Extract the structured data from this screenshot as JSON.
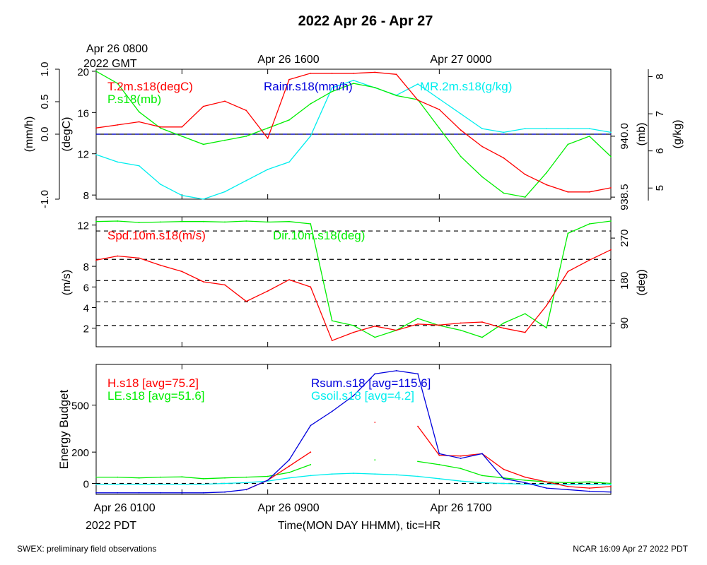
{
  "page": {
    "title": "2022 Apr 26 - Apr 27",
    "top_time_labels": [
      "Apr 26 0800",
      "Apr 26 1600",
      "Apr 27 0000"
    ],
    "top_zone_label": "2022 GMT",
    "bottom_time_labels": [
      "Apr 26 0100",
      "Apr 26 0900",
      "Apr 26 1700"
    ],
    "bottom_zone_label": "2022 PDT",
    "xaxis_label": "Time(MON DAY HHMM), tic=HR",
    "footer_left": "SWEX: preliminary field observations",
    "footer_right": "NCAR 16:09 Apr 27 2022 PDT"
  },
  "colors": {
    "red": "#ff0000",
    "green": "#00ee00",
    "blue": "#0000dd",
    "cyan": "#00eeee",
    "black": "#000000"
  },
  "chart_data": [
    {
      "type": "line",
      "x_hours_pdt": [
        0,
        1,
        2,
        3,
        4,
        5,
        6,
        7,
        8,
        9,
        10,
        11,
        12,
        13,
        14,
        15,
        16,
        17,
        18,
        19,
        20,
        21,
        22,
        23,
        24
      ],
      "axes": {
        "mmh": {
          "label": "(mm/h)",
          "ticks": [
            "-1.0",
            "0.0",
            "0.5",
            "1.0"
          ],
          "ylim": [
            -1.0,
            1.0
          ]
        },
        "degC": {
          "label": "(degC)",
          "ticks": [
            "8",
            "12",
            "16",
            "20"
          ],
          "ylim": [
            7.6,
            20.2
          ]
        },
        "mb": {
          "label": "(mb)",
          "ticks": [
            "938.5",
            "940.0"
          ],
          "ylim": [
            938.45,
            941.65
          ]
        },
        "gkg": {
          "label": "(g/kg)",
          "ticks": [
            "5",
            "6",
            "7",
            "8"
          ],
          "ylim": [
            4.7,
            8.2
          ]
        }
      },
      "series": [
        {
          "name": "T.2m.s18(degC)",
          "color": "#ff0000",
          "axis": "degC",
          "values": [
            14.5,
            14.8,
            15.1,
            14.6,
            14.6,
            16.6,
            17.1,
            16.2,
            13.5,
            19.2,
            19.8,
            19.8,
            19.8,
            19.9,
            19.7,
            17.2,
            16.3,
            14.3,
            12.7,
            11.6,
            10.0,
            9.0,
            8.3,
            8.3,
            8.7
          ]
        },
        {
          "name": "P.s18(mb)",
          "color": "#00ee00",
          "axis": "mb",
          "values": [
            941.6,
            941.3,
            940.6,
            940.2,
            940.0,
            939.8,
            939.9,
            940.0,
            940.2,
            940.4,
            940.8,
            941.1,
            941.3,
            941.2,
            941.0,
            940.9,
            940.2,
            939.5,
            939.0,
            938.6,
            938.5,
            939.1,
            939.8,
            940.0,
            939.5
          ]
        },
        {
          "name": "MR.2m.s18(g/kg)",
          "color": "#00eeee",
          "axis": "gkg",
          "values": [
            5.9,
            5.7,
            5.6,
            5.1,
            4.8,
            4.7,
            4.9,
            5.2,
            5.5,
            5.7,
            6.4,
            7.7,
            7.9,
            7.7,
            7.5,
            7.8,
            7.4,
            7.0,
            6.6,
            6.5,
            6.6,
            6.6,
            6.6,
            6.6,
            6.5
          ]
        },
        {
          "name": "Rainr.s18(mm/h)",
          "color": "#0000dd",
          "axis": "mmh",
          "values": [
            0,
            0,
            0,
            0,
            0,
            0,
            0,
            0,
            0,
            0,
            0,
            0,
            0,
            0,
            0,
            0,
            0,
            0,
            0,
            0,
            0,
            0,
            0,
            0,
            0
          ]
        }
      ]
    },
    {
      "type": "line",
      "x_hours_pdt": [
        0,
        1,
        2,
        3,
        4,
        5,
        6,
        7,
        8,
        9,
        10,
        11,
        12,
        13,
        14,
        15,
        16,
        17,
        18,
        19,
        20,
        21,
        22,
        23,
        24
      ],
      "axes": {
        "ms": {
          "label": "(m/s)",
          "ticks": [
            "2",
            "4",
            "6",
            "8",
            "12"
          ],
          "ylim": [
            0.2,
            12.8
          ]
        },
        "deg": {
          "label": "(deg)",
          "ticks": [
            "90",
            "180",
            "270"
          ],
          "ylim": [
            40,
            315
          ]
        }
      },
      "series": [
        {
          "name": "Spd.10m.s18(m/s)",
          "color": "#ff0000",
          "axis": "ms",
          "values": [
            8.6,
            9.0,
            8.8,
            8.1,
            7.5,
            6.5,
            6.2,
            4.6,
            5.6,
            6.7,
            6.0,
            0.8,
            1.6,
            2.2,
            1.8,
            2.4,
            2.3,
            2.5,
            2.6,
            2.0,
            1.6,
            4.2,
            7.5,
            8.6,
            9.6
          ]
        },
        {
          "name": "Dir.10m.s18(deg)",
          "color": "#00ee00",
          "axis": "deg",
          "values": [
            305,
            306,
            303,
            304,
            305,
            305,
            304,
            306,
            304,
            305,
            300,
            95,
            85,
            60,
            75,
            100,
            85,
            75,
            60,
            90,
            110,
            80,
            280,
            300,
            306
          ]
        }
      ]
    },
    {
      "type": "line",
      "ylabel": "Energy Budget",
      "yticks": [
        "0",
        "200",
        "500"
      ],
      "ylim": [
        -70,
        760
      ],
      "x_hours_pdt": [
        0,
        1,
        2,
        3,
        4,
        5,
        6,
        7,
        8,
        9,
        10,
        11,
        12,
        13,
        14,
        15,
        16,
        17,
        18,
        19,
        20,
        21,
        22,
        23,
        24
      ],
      "series": [
        {
          "name": "H.s18 [avg=75.2]",
          "color": "#ff0000",
          "values": [
            null,
            null,
            null,
            null,
            null,
            null,
            null,
            -40,
            20,
            110,
            200,
            null,
            null,
            390,
            null,
            365,
            180,
            175,
            190,
            90,
            40,
            10,
            -20,
            -30,
            -20
          ]
        },
        {
          "name": "LE.s18 [avg=51.6]",
          "color": "#00ee00",
          "values": [
            40,
            40,
            35,
            40,
            42,
            30,
            35,
            40,
            45,
            70,
            120,
            null,
            null,
            150,
            null,
            140,
            120,
            95,
            50,
            35,
            20,
            10,
            5,
            10,
            0
          ]
        },
        {
          "name": "Rsum.s18 [avg=115.6]",
          "color": "#0000dd",
          "values": [
            -60,
            -60,
            -60,
            -60,
            -60,
            -60,
            -55,
            -40,
            20,
            150,
            370,
            460,
            560,
            700,
            720,
            700,
            190,
            160,
            190,
            30,
            5,
            -30,
            -40,
            -50,
            -55
          ]
        },
        {
          "name": "Gsoil.s18 [avg=4.2]",
          "color": "#00eeee",
          "values": [
            -5,
            -5,
            -5,
            -5,
            -5,
            -5,
            0,
            5,
            15,
            35,
            50,
            60,
            65,
            60,
            55,
            45,
            30,
            15,
            5,
            0,
            -5,
            -5,
            -8,
            -8,
            -8
          ]
        }
      ]
    }
  ]
}
